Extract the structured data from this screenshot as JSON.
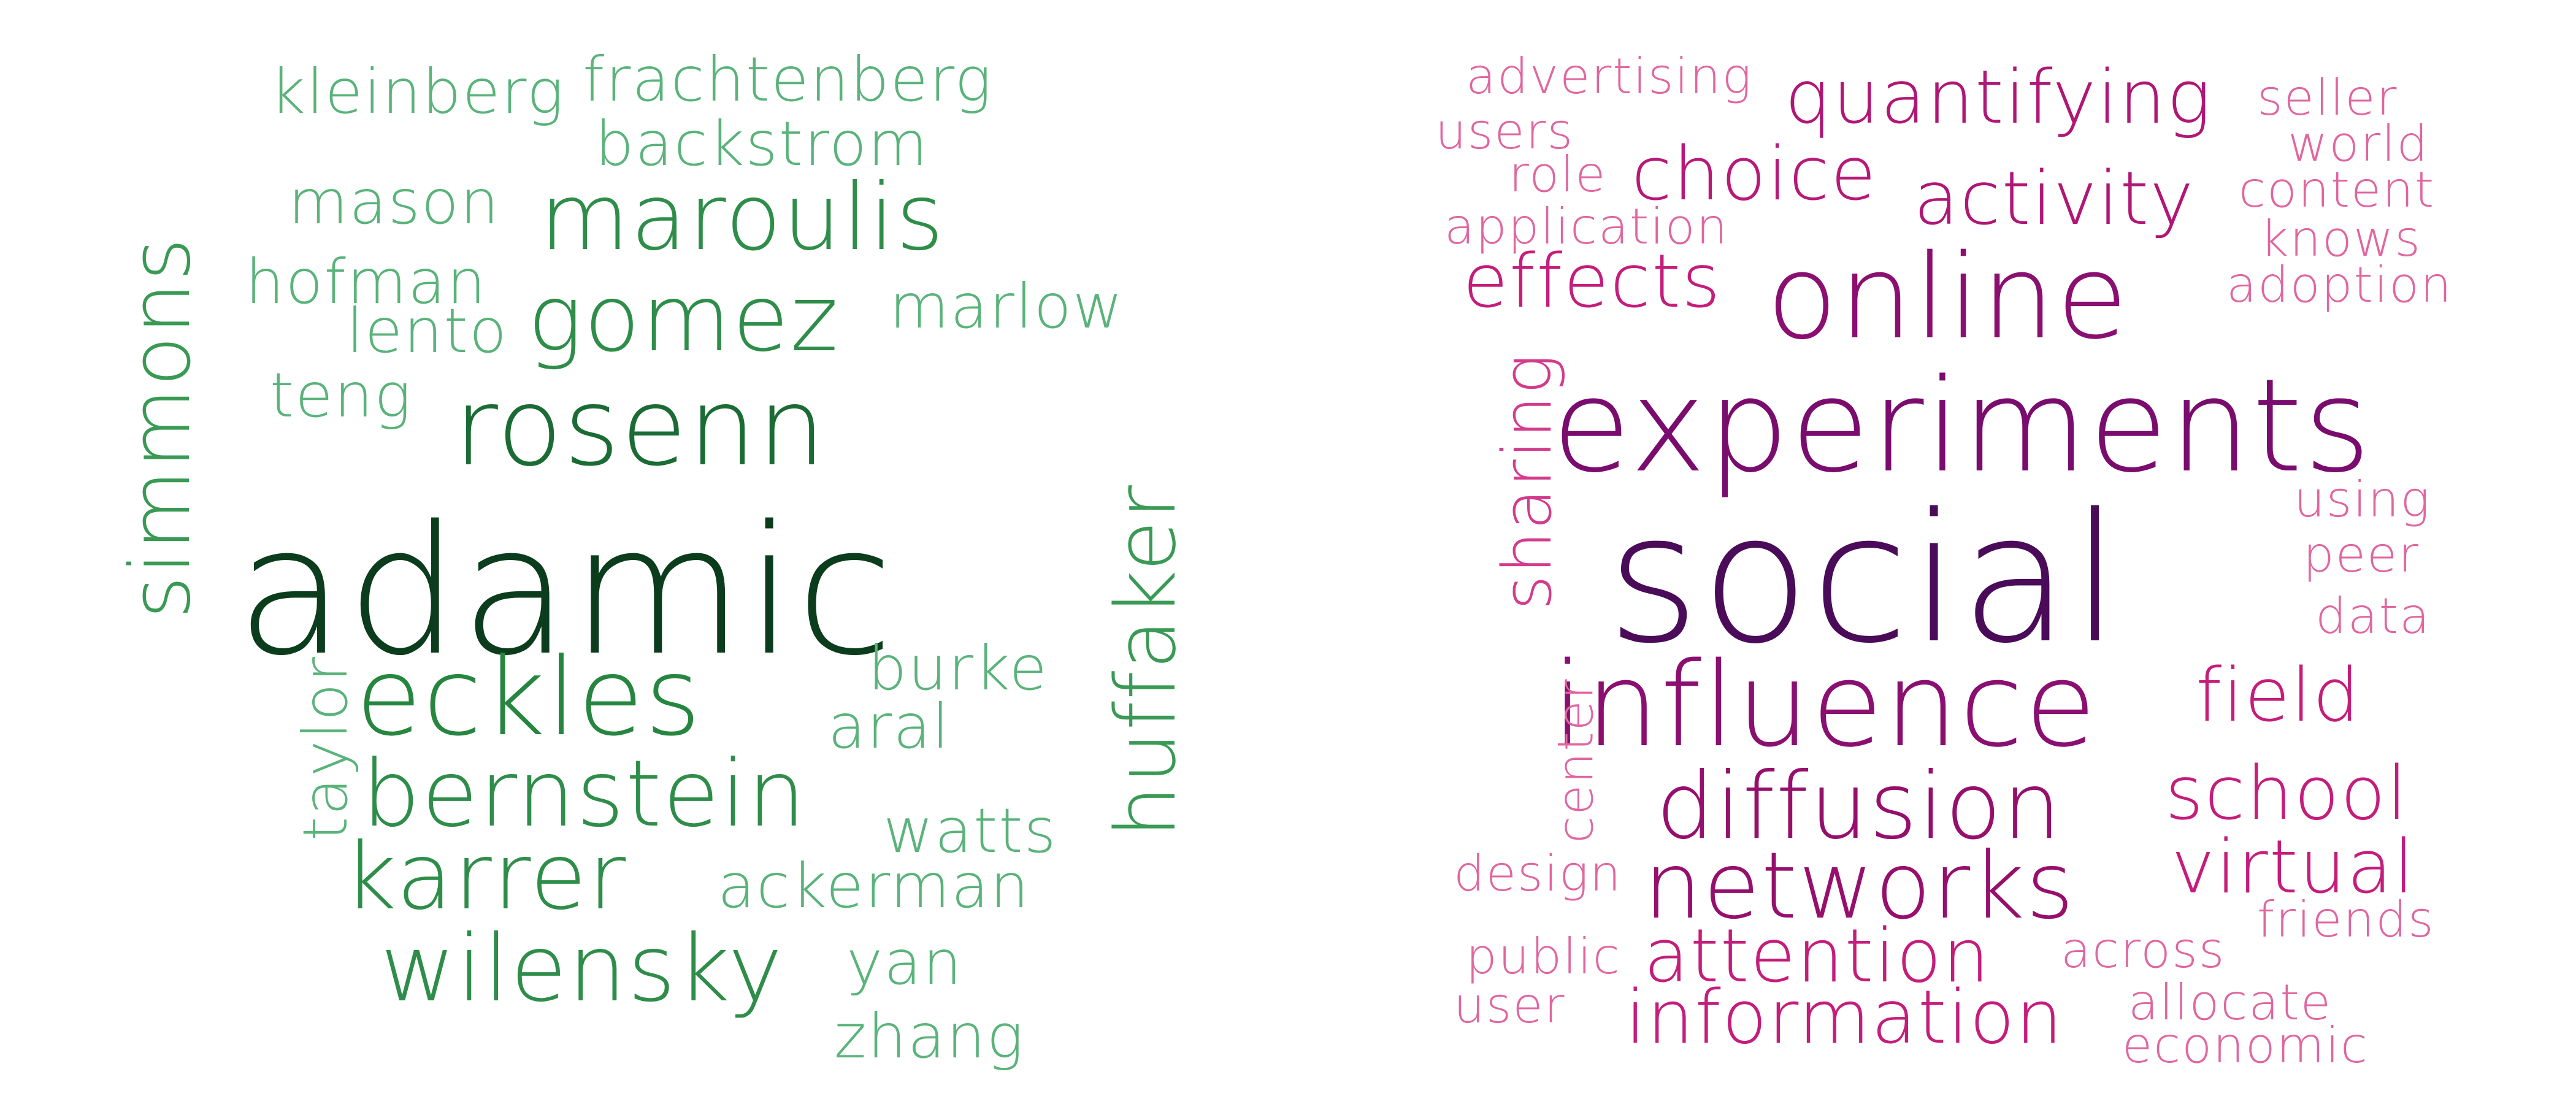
{
  "left_cloud": {
    "words": [
      {
        "text": "adamic",
        "color": "#0b3d1c"
      },
      {
        "text": "rosenn",
        "color": "#1b6b34"
      },
      {
        "text": "eckles",
        "color": "#26863f"
      },
      {
        "text": "simmons",
        "color": "#3a9a55"
      },
      {
        "text": "huffaker",
        "color": "#3a9a55"
      },
      {
        "text": "maroulis",
        "color": "#2f8d4a"
      },
      {
        "text": "gomez",
        "color": "#2f8d4a"
      },
      {
        "text": "bernstein",
        "color": "#2f8d4a"
      },
      {
        "text": "karrer",
        "color": "#2f8d4a"
      },
      {
        "text": "wilensky",
        "color": "#2f8d4a"
      },
      {
        "text": "frachtenberg",
        "color": "#5ab37a"
      },
      {
        "text": "kleinberg",
        "color": "#5ab37a"
      },
      {
        "text": "backstrom",
        "color": "#5ab37a"
      },
      {
        "text": "mason",
        "color": "#5ab37a"
      },
      {
        "text": "hofman",
        "color": "#5ab37a"
      },
      {
        "text": "lento",
        "color": "#5ab37a"
      },
      {
        "text": "marlow",
        "color": "#5ab37a"
      },
      {
        "text": "teng",
        "color": "#5ab37a"
      },
      {
        "text": "taylor",
        "color": "#5ab37a"
      },
      {
        "text": "burke",
        "color": "#5ab37a"
      },
      {
        "text": "aral",
        "color": "#5ab37a"
      },
      {
        "text": "watts",
        "color": "#5ab37a"
      },
      {
        "text": "ackerman",
        "color": "#5ab37a"
      },
      {
        "text": "yan",
        "color": "#5ab37a"
      },
      {
        "text": "zhang",
        "color": "#5ab37a"
      }
    ]
  },
  "right_cloud": {
    "words": [
      {
        "text": "social",
        "color": "#4a0b58"
      },
      {
        "text": "experiments",
        "color": "#7a0c6e"
      },
      {
        "text": "online",
        "color": "#8a0f70"
      },
      {
        "text": "influence",
        "color": "#8a0f70"
      },
      {
        "text": "diffusion",
        "color": "#960f6d"
      },
      {
        "text": "networks",
        "color": "#960f6d"
      },
      {
        "text": "quantifying",
        "color": "#b01675"
      },
      {
        "text": "activity",
        "color": "#b01675"
      },
      {
        "text": "choice",
        "color": "#b81878"
      },
      {
        "text": "effects",
        "color": "#c41d7b"
      },
      {
        "text": "sharing",
        "color": "#d33b8c"
      },
      {
        "text": "attention",
        "color": "#c41d7b"
      },
      {
        "text": "information",
        "color": "#c41d7b"
      },
      {
        "text": "field",
        "color": "#c41d7b"
      },
      {
        "text": "school",
        "color": "#c41d7b"
      },
      {
        "text": "virtual",
        "color": "#c41d7b"
      },
      {
        "text": "advertising",
        "color": "#e0669f"
      },
      {
        "text": "users",
        "color": "#e0669f"
      },
      {
        "text": "role",
        "color": "#e0669f"
      },
      {
        "text": "application",
        "color": "#e0669f"
      },
      {
        "text": "seller",
        "color": "#e0669f"
      },
      {
        "text": "world",
        "color": "#e0669f"
      },
      {
        "text": "content",
        "color": "#e0669f"
      },
      {
        "text": "knows",
        "color": "#e0669f"
      },
      {
        "text": "adoption",
        "color": "#e0669f"
      },
      {
        "text": "using",
        "color": "#e0669f"
      },
      {
        "text": "peer",
        "color": "#e0669f"
      },
      {
        "text": "data",
        "color": "#e0669f"
      },
      {
        "text": "center",
        "color": "#e0669f"
      },
      {
        "text": "design",
        "color": "#e0669f"
      },
      {
        "text": "public",
        "color": "#e0669f"
      },
      {
        "text": "user",
        "color": "#e0669f"
      },
      {
        "text": "across",
        "color": "#e0669f"
      },
      {
        "text": "friends",
        "color": "#e0669f"
      },
      {
        "text": "allocate",
        "color": "#e0669f"
      },
      {
        "text": "economic",
        "color": "#e0669f"
      }
    ]
  }
}
